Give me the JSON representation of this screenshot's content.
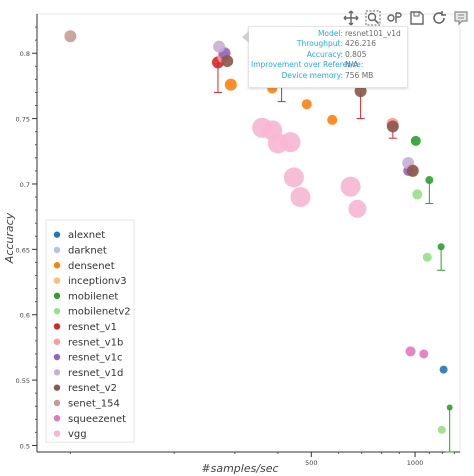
{
  "toolbar": {
    "tools": [
      {
        "name": "pan-tool",
        "label": "Pan"
      },
      {
        "name": "box-zoom-tool",
        "label": "Box Zoom"
      },
      {
        "name": "wheel-zoom-tool",
        "label": "Wheel Zoom"
      },
      {
        "name": "save-tool",
        "label": "Save"
      },
      {
        "name": "reset-tool",
        "label": "Reset"
      },
      {
        "name": "hover-tool",
        "label": "Hover"
      }
    ]
  },
  "tooltip": {
    "rows": [
      {
        "key": "Model:",
        "value": "resnet101_v1d"
      },
      {
        "key": "Throughput:",
        "value": "426.216"
      },
      {
        "key": "Accuracy:",
        "value": "0.805"
      },
      {
        "key": "Improvement over Reference:",
        "value": "N/A"
      },
      {
        "key": "Device memory:",
        "value": "756 MB"
      }
    ]
  },
  "chart_data": {
    "type": "scatter",
    "xlabel": "#samples/sec",
    "ylabel": "Accuracy",
    "x_scale": "log",
    "xlim": [
      80,
      1350
    ],
    "ylim": [
      0.495,
      0.83
    ],
    "x_ticks": [
      500,
      1000
    ],
    "y_ticks": [
      0.5,
      0.55,
      0.6,
      0.65,
      0.7,
      0.75,
      0.8
    ],
    "legend_position": "bottom-left",
    "colors": {
      "alexnet": "#1f77b4",
      "darknet": "#aec7e8",
      "densenet": "#ff7f0e",
      "inceptionv3": "#ffbb78",
      "mobilenet": "#2ca02c",
      "mobilenetv2": "#98df8a",
      "resnet_v1": "#d62728",
      "resnet_v1b": "#ff9896",
      "resnet_v1c": "#9467bd",
      "resnet_v1d": "#c5b0d5",
      "resnet_v2": "#8c564b",
      "senet_154": "#c49c94",
      "squeezenet": "#e377c2",
      "vgg": "#f7b6d2"
    },
    "series": [
      {
        "name": "alexnet",
        "points": [
          [
            1210,
            0.558,
            4
          ]
        ]
      },
      {
        "name": "darknet",
        "points": []
      },
      {
        "name": "densenet",
        "points": [
          [
            292,
            0.776,
            6
          ],
          [
            385,
            0.773,
            5
          ],
          [
            485,
            0.761,
            5
          ],
          [
            575,
            0.749,
            5
          ]
        ]
      },
      {
        "name": "inceptionv3",
        "points": []
      },
      {
        "name": "mobilenet",
        "points": [
          [
            1005,
            0.733,
            5
          ],
          [
            1100,
            0.703,
            4
          ],
          [
            1190,
            0.652,
            3.5
          ],
          [
            1260,
            0.529,
            3
          ]
        ]
      },
      {
        "name": "mobilenetv2",
        "points": [
          [
            1015,
            0.692,
            5
          ],
          [
            1085,
            0.644,
            4.5
          ],
          [
            1195,
            0.512,
            4
          ]
        ]
      },
      {
        "name": "resnet_v1",
        "points": [
          [
            268,
            0.793,
            6
          ],
          [
            410,
            0.784,
            6
          ],
          [
            680,
            0.778,
            6
          ]
        ]
      },
      {
        "name": "resnet_v1b",
        "points": [
          [
            278,
            0.797,
            6
          ],
          [
            420,
            0.788,
            6
          ],
          [
            690,
            0.781,
            6
          ],
          [
            860,
            0.746,
            6
          ],
          [
            975,
            0.711,
            6
          ]
        ]
      },
      {
        "name": "resnet_v1c",
        "points": [
          [
            280,
            0.8,
            6
          ],
          [
            403,
            0.797,
            6
          ],
          [
            675,
            0.78,
            6
          ],
          [
            955,
            0.71,
            5
          ]
        ]
      },
      {
        "name": "resnet_v1d",
        "points": [
          [
            270,
            0.805,
            6
          ],
          [
            426.216,
            0.805,
            6
          ],
          [
            685,
            0.784,
            6
          ],
          [
            955,
            0.716,
            6
          ]
        ]
      },
      {
        "name": "resnet_v2",
        "points": [
          [
            285,
            0.794,
            6
          ],
          [
            418,
            0.789,
            6
          ],
          [
            695,
            0.771,
            6
          ],
          [
            862,
            0.744,
            6
          ],
          [
            985,
            0.71,
            6
          ]
        ]
      },
      {
        "name": "senet_154",
        "points": [
          [
            100,
            0.813,
            6
          ]
        ]
      },
      {
        "name": "squeezenet",
        "points": [
          [
            970,
            0.572,
            5
          ],
          [
            1060,
            0.57,
            4.5
          ]
        ]
      },
      {
        "name": "vgg",
        "points": [
          [
            360,
            0.743,
            10
          ],
          [
            385,
            0.741,
            10
          ],
          [
            400,
            0.731,
            10
          ],
          [
            435,
            0.732,
            10
          ],
          [
            445,
            0.705,
            10
          ],
          [
            465,
            0.69,
            10
          ],
          [
            650,
            0.698,
            10
          ],
          [
            680,
            0.681,
            9
          ]
        ]
      }
    ],
    "error_bars": [
      {
        "x": 268,
        "y": 0.793,
        "low": 0.77,
        "color": "#d62728"
      },
      {
        "x": 410,
        "y": 0.784,
        "low": 0.763,
        "color": "#d62728"
      },
      {
        "x": 426.216,
        "y": 0.805,
        "low": 0.795,
        "color": "#d62728"
      },
      {
        "x": 695,
        "y": 0.771,
        "low": 0.75,
        "color": "#d62728"
      },
      {
        "x": 862,
        "y": 0.744,
        "low": 0.735,
        "color": "#d62728"
      },
      {
        "x": 1100,
        "y": 0.703,
        "low": 0.685,
        "color": "#2ca02c"
      },
      {
        "x": 1190,
        "y": 0.652,
        "low": 0.634,
        "color": "#2ca02c"
      },
      {
        "x": 1260,
        "y": 0.529,
        "low": 0.495,
        "color": "#2ca02c"
      }
    ]
  }
}
